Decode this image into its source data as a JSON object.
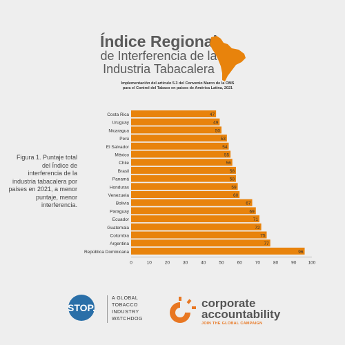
{
  "header": {
    "title_line1": "Índice Regional",
    "title_line2": "de Interferencia de la",
    "title_line3": "Industria Tabacalera",
    "subtitle_line1": "Implementación del artículo 5.3 del Convenio Marco de la OMS",
    "subtitle_line2": "para el Control del Tabaco en países de América Latina, 2021",
    "map_icon": "latin-america-map-icon",
    "map_color": "#e8830c"
  },
  "caption": "Figura 1. Puntaje total del Índice de interferencia de la industria tabacalera por países en 2021, a menor puntaje, menor interferencia.",
  "chart_data": {
    "type": "bar",
    "orientation": "horizontal",
    "categories": [
      "Costa Rica",
      "Uruguay",
      "Nicaragua",
      "Perú",
      "El Salvador",
      "México",
      "Chile",
      "Brasil",
      "Panamá",
      "Honduras",
      "Venezuela",
      "Bolivia",
      "Paraguay",
      "Ecuador",
      "Guatemala",
      "Colombia",
      "Argentina",
      "República Dominicana"
    ],
    "values": [
      47,
      49,
      50,
      53,
      54,
      55,
      56,
      58,
      58,
      59,
      60,
      67,
      69,
      71,
      72,
      75,
      77,
      96
    ],
    "xlim": [
      0,
      100
    ],
    "xticks": [
      0,
      10,
      20,
      30,
      40,
      50,
      60,
      70,
      80,
      90,
      100
    ],
    "bar_color": "#e8830c",
    "grid": false,
    "data_labels": true
  },
  "footer": {
    "stop_logo": "STOP.",
    "stop_tag_lines": [
      "A GLOBAL",
      "TOBACCO",
      "INDUSTRY",
      "WATCHDOG"
    ],
    "stop_color": "#2a6fa8",
    "ca_icon": "corporate-accountability-sun-icon",
    "ca_name_line1": "corporate",
    "ca_name_line2": "accountability",
    "ca_tag": "JOIN THE GLOBAL CAMPAIGN",
    "ca_color": "#e87722"
  }
}
